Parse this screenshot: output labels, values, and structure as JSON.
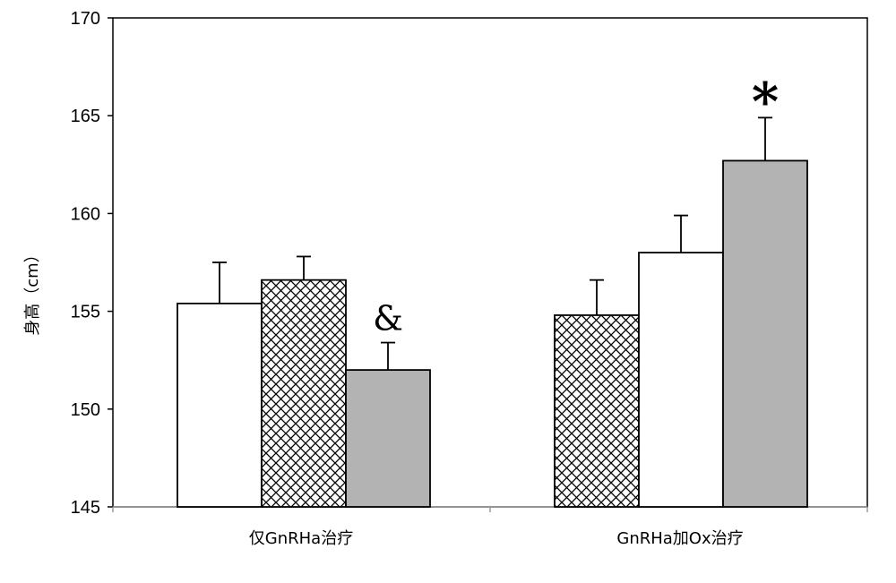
{
  "chart_data": {
    "type": "bar",
    "title": "",
    "xlabel": "",
    "ylabel": "身高（cm）",
    "ylim": [
      145,
      170
    ],
    "yticks": [
      145,
      150,
      155,
      160,
      165,
      170
    ],
    "grid": false,
    "legend": "none",
    "categories": [
      "仅GnRHa治疗",
      "GnRHa加Ox治疗"
    ],
    "groups": [
      {
        "category": "仅GnRHa治疗",
        "bars": [
          {
            "pattern": "white",
            "value": 155.4,
            "error": 2.1
          },
          {
            "pattern": "crosshatch",
            "value": 156.6,
            "error": 1.2
          },
          {
            "pattern": "gray",
            "value": 152.0,
            "error": 1.4,
            "annotation": "&"
          }
        ]
      },
      {
        "category": "GnRHa加Ox治疗",
        "bars": [
          {
            "pattern": "crosshatch",
            "value": 154.8,
            "error": 1.8
          },
          {
            "pattern": "white",
            "value": 158.0,
            "error": 1.9
          },
          {
            "pattern": "gray",
            "value": 162.7,
            "error": 2.2,
            "annotation": "*"
          }
        ]
      }
    ],
    "colors": {
      "white": "#ffffff",
      "gray": "#b3b3b3",
      "hatch": "#000000"
    }
  }
}
